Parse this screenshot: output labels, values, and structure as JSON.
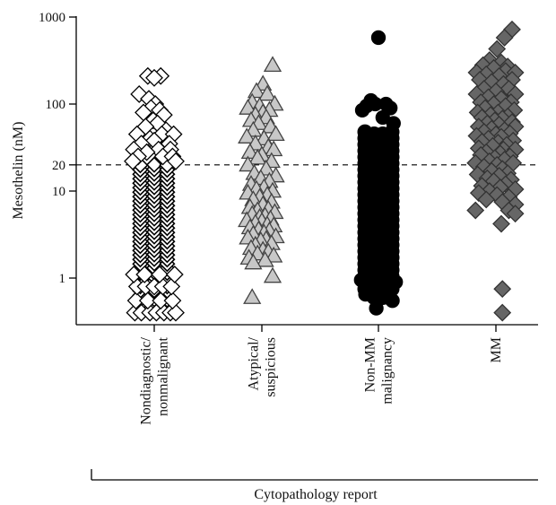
{
  "chart_data": {
    "type": "scatter",
    "title": "",
    "xlabel": "Cytopathology report",
    "ylabel": "Mesothelin (nM)",
    "y_scale": "log",
    "ylim": [
      0.3,
      1000
    ],
    "yticks": [
      {
        "value": 1,
        "label": "1"
      },
      {
        "value": 10,
        "label": "10"
      },
      {
        "value": 20,
        "label": "20"
      },
      {
        "value": 100,
        "label": "100"
      },
      {
        "value": 1000,
        "label": "1000"
      }
    ],
    "threshold": 20,
    "grid": false,
    "legend": "none",
    "categories": [
      {
        "label_lines": [
          "Nondiagnostic/",
          "nonmalignant"
        ]
      },
      {
        "label_lines": [
          "Atypical/",
          "suspicious"
        ]
      },
      {
        "label_lines": [
          "Non-MM",
          "malignancy"
        ]
      },
      {
        "label_lines": [
          "MM"
        ]
      }
    ],
    "series": [
      {
        "category": 0,
        "marker": "diamond",
        "fill": "#ffffff",
        "stroke": "#000000",
        "points": [
          {
            "x": -0.6,
            "y": 210
          },
          {
            "x": 0.6,
            "y": 210
          },
          {
            "x": 0.0,
            "y": 200
          },
          {
            "x": -1.4,
            "y": 130
          },
          {
            "x": -0.5,
            "y": 115
          },
          {
            "x": 0.1,
            "y": 100
          },
          {
            "x": -0.3,
            "y": 90
          },
          {
            "x": 0.5,
            "y": 85
          },
          {
            "x": -1.0,
            "y": 80
          },
          {
            "x": 0.9,
            "y": 75
          },
          {
            "x": -0.1,
            "y": 65
          },
          {
            "x": 0.3,
            "y": 60
          },
          {
            "x": -0.8,
            "y": 55
          },
          {
            "x": 1.1,
            "y": 50
          },
          {
            "x": -1.6,
            "y": 45
          },
          {
            "x": 0.7,
            "y": 45
          },
          {
            "x": 1.8,
            "y": 45
          },
          {
            "x": -0.4,
            "y": 40
          },
          {
            "x": 0.0,
            "y": 38
          },
          {
            "x": -1.2,
            "y": 35
          },
          {
            "x": 1.4,
            "y": 35
          },
          {
            "x": -1.9,
            "y": 30
          },
          {
            "x": 0.4,
            "y": 30
          },
          {
            "x": 1.5,
            "y": 30
          },
          {
            "x": -0.7,
            "y": 28
          },
          {
            "x": -1.5,
            "y": 25
          },
          {
            "x": 0.8,
            "y": 25
          },
          {
            "x": 1.7,
            "y": 25
          },
          {
            "x": -2.0,
            "y": 22
          },
          {
            "x": 2.0,
            "y": 22
          },
          {
            "x": -1.8,
            "y": 0.4
          },
          {
            "x": -1.2,
            "y": 0.4
          },
          {
            "x": -0.4,
            "y": 0.4
          },
          {
            "x": 0.2,
            "y": 0.4
          },
          {
            "x": 0.9,
            "y": 0.4
          },
          {
            "x": 1.5,
            "y": 0.4
          },
          {
            "x": 2.0,
            "y": 0.4
          },
          {
            "x": -1.7,
            "y": 0.55
          },
          {
            "x": -0.6,
            "y": 0.55
          },
          {
            "x": 0.6,
            "y": 0.55
          },
          {
            "x": 1.7,
            "y": 0.55
          },
          {
            "x": -1.6,
            "y": 0.8
          },
          {
            "x": -0.8,
            "y": 0.8
          },
          {
            "x": 0.0,
            "y": 0.8
          },
          {
            "x": 0.8,
            "y": 0.8
          },
          {
            "x": 1.6,
            "y": 0.8
          },
          {
            "x": -1.9,
            "y": 1.1
          },
          {
            "x": -0.9,
            "y": 1.1
          },
          {
            "x": 0.5,
            "y": 1.1
          },
          {
            "x": 1.9,
            "y": 1.1
          }
        ]
      },
      {
        "category": 1,
        "marker": "triangle",
        "fill": "#c8c8c8",
        "stroke": "#444444",
        "points": [
          {
            "x": 1.0,
            "y": 280
          },
          {
            "x": 0.1,
            "y": 170
          },
          {
            "x": -0.5,
            "y": 140
          },
          {
            "x": 0.5,
            "y": 130
          },
          {
            "x": -0.9,
            "y": 105
          },
          {
            "x": 1.2,
            "y": 100
          },
          {
            "x": -0.2,
            "y": 95
          },
          {
            "x": -1.3,
            "y": 90
          },
          {
            "x": 0.7,
            "y": 85
          },
          {
            "x": 0.1,
            "y": 80
          },
          {
            "x": -0.6,
            "y": 75
          },
          {
            "x": 0.4,
            "y": 70
          },
          {
            "x": -1.0,
            "y": 65
          },
          {
            "x": -0.3,
            "y": 60
          },
          {
            "x": 0.8,
            "y": 55
          },
          {
            "x": -0.8,
            "y": 50
          },
          {
            "x": 1.3,
            "y": 45
          },
          {
            "x": -1.4,
            "y": 42
          },
          {
            "x": 0.2,
            "y": 40
          },
          {
            "x": -0.6,
            "y": 35
          },
          {
            "x": 0.6,
            "y": 32
          },
          {
            "x": 1.1,
            "y": 30
          },
          {
            "x": -1.1,
            "y": 28
          },
          {
            "x": 0.0,
            "y": 26
          },
          {
            "x": -0.4,
            "y": 24
          },
          {
            "x": 0.9,
            "y": 22
          },
          {
            "x": -1.3,
            "y": 20
          },
          {
            "x": 0.4,
            "y": 18
          },
          {
            "x": -0.7,
            "y": 16
          },
          {
            "x": 1.3,
            "y": 15
          },
          {
            "x": -0.1,
            "y": 14
          },
          {
            "x": 0.7,
            "y": 13
          },
          {
            "x": -1.0,
            "y": 12
          },
          {
            "x": 0.2,
            "y": 11
          },
          {
            "x": -0.5,
            "y": 10.5
          },
          {
            "x": 1.0,
            "y": 10
          },
          {
            "x": -1.3,
            "y": 9.5
          },
          {
            "x": 0.5,
            "y": 9
          },
          {
            "x": -0.2,
            "y": 8.5
          },
          {
            "x": -0.8,
            "y": 8
          },
          {
            "x": 0.9,
            "y": 7.5
          },
          {
            "x": 0.1,
            "y": 7
          },
          {
            "x": -1.1,
            "y": 6.5
          },
          {
            "x": 0.6,
            "y": 6.2
          },
          {
            "x": -0.4,
            "y": 6
          },
          {
            "x": 1.2,
            "y": 5.7
          },
          {
            "x": -0.9,
            "y": 5.4
          },
          {
            "x": 0.3,
            "y": 5.2
          },
          {
            "x": -0.2,
            "y": 5
          },
          {
            "x": 0.8,
            "y": 4.8
          },
          {
            "x": -1.4,
            "y": 4.6
          },
          {
            "x": 0.0,
            "y": 4.5
          },
          {
            "x": -0.6,
            "y": 4.3
          },
          {
            "x": 0.5,
            "y": 4.1
          },
          {
            "x": 1.1,
            "y": 4
          },
          {
            "x": -1.1,
            "y": 3.8
          },
          {
            "x": -0.3,
            "y": 3.6
          },
          {
            "x": 0.7,
            "y": 3.5
          },
          {
            "x": 0.2,
            "y": 3.3
          },
          {
            "x": -0.8,
            "y": 3.2
          },
          {
            "x": 1.3,
            "y": 3
          },
          {
            "x": -1.3,
            "y": 2.9
          },
          {
            "x": 0.4,
            "y": 2.8
          },
          {
            "x": -0.1,
            "y": 2.7
          },
          {
            "x": 0.9,
            "y": 2.5
          },
          {
            "x": -0.6,
            "y": 2.4
          },
          {
            "x": -1.0,
            "y": 2.2
          },
          {
            "x": 0.1,
            "y": 2.1
          },
          {
            "x": 0.6,
            "y": 2
          },
          {
            "x": -0.4,
            "y": 1.9
          },
          {
            "x": 1.1,
            "y": 1.8
          },
          {
            "x": -1.2,
            "y": 1.7
          },
          {
            "x": 0.3,
            "y": 1.6
          },
          {
            "x": -0.8,
            "y": 1.5
          },
          {
            "x": 1.0,
            "y": 1.05
          },
          {
            "x": -0.9,
            "y": 0.6
          }
        ]
      },
      {
        "category": 2,
        "marker": "circle",
        "fill": "#000000",
        "stroke": "#000000",
        "points": [
          {
            "x": 0.0,
            "y": 580
          },
          {
            "x": -0.7,
            "y": 110
          },
          {
            "x": -0.3,
            "y": 100
          },
          {
            "x": 0.7,
            "y": 100
          },
          {
            "x": -1.1,
            "y": 95
          },
          {
            "x": 1.1,
            "y": 90
          },
          {
            "x": -1.5,
            "y": 85
          },
          {
            "x": 0.4,
            "y": 70
          },
          {
            "x": 1.4,
            "y": 60
          },
          {
            "x": -0.2,
            "y": 0.45
          },
          {
            "x": -1.2,
            "y": 0.65
          },
          {
            "x": -0.6,
            "y": 0.75
          },
          {
            "x": 0.3,
            "y": 0.7
          },
          {
            "x": 0.8,
            "y": 0.6
          },
          {
            "x": 1.3,
            "y": 0.55
          },
          {
            "x": -1.6,
            "y": 0.95
          },
          {
            "x": 0.6,
            "y": 0.95
          },
          {
            "x": 1.6,
            "y": 0.9
          }
        ]
      },
      {
        "category": 3,
        "marker": "diamond",
        "fill": "#666666",
        "stroke": "#333333",
        "points": [
          {
            "x": 1.5,
            "y": 720
          },
          {
            "x": 0.8,
            "y": 580
          },
          {
            "x": 0.1,
            "y": 430
          },
          {
            "x": -0.6,
            "y": 320
          },
          {
            "x": 0.5,
            "y": 300
          },
          {
            "x": -1.2,
            "y": 280
          },
          {
            "x": 1.1,
            "y": 270
          },
          {
            "x": -0.2,
            "y": 260
          },
          {
            "x": 0.9,
            "y": 240
          },
          {
            "x": -1.8,
            "y": 230
          },
          {
            "x": 1.8,
            "y": 230
          },
          {
            "x": -0.9,
            "y": 220
          },
          {
            "x": 0.3,
            "y": 210
          },
          {
            "x": -1.5,
            "y": 190
          },
          {
            "x": 1.5,
            "y": 190
          },
          {
            "x": -0.4,
            "y": 180
          },
          {
            "x": 0.7,
            "y": 170
          },
          {
            "x": -1.1,
            "y": 150
          },
          {
            "x": 1.2,
            "y": 150
          },
          {
            "x": 0.0,
            "y": 140
          },
          {
            "x": -1.8,
            "y": 130
          },
          {
            "x": 1.8,
            "y": 130
          },
          {
            "x": -0.7,
            "y": 120
          },
          {
            "x": 0.5,
            "y": 115
          },
          {
            "x": -1.4,
            "y": 105
          },
          {
            "x": 1.4,
            "y": 105
          },
          {
            "x": -0.2,
            "y": 100
          },
          {
            "x": 0.9,
            "y": 95
          },
          {
            "x": -1.0,
            "y": 90
          },
          {
            "x": 1.7,
            "y": 85
          },
          {
            "x": -1.7,
            "y": 80
          },
          {
            "x": 0.2,
            "y": 80
          },
          {
            "x": -0.5,
            "y": 75
          },
          {
            "x": 1.1,
            "y": 72
          },
          {
            "x": -1.3,
            "y": 70
          },
          {
            "x": 0.6,
            "y": 68
          },
          {
            "x": -0.1,
            "y": 65
          },
          {
            "x": 1.5,
            "y": 62
          },
          {
            "x": -0.8,
            "y": 60
          },
          {
            "x": 0.3,
            "y": 58
          },
          {
            "x": -1.6,
            "y": 55
          },
          {
            "x": 1.8,
            "y": 55
          },
          {
            "x": -0.4,
            "y": 52
          },
          {
            "x": 0.8,
            "y": 50
          },
          {
            "x": -1.1,
            "y": 48
          },
          {
            "x": 1.3,
            "y": 46
          },
          {
            "x": 0.0,
            "y": 45
          },
          {
            "x": -1.8,
            "y": 43
          },
          {
            "x": 0.5,
            "y": 42
          },
          {
            "x": -0.7,
            "y": 40
          },
          {
            "x": 1.6,
            "y": 38
          },
          {
            "x": -1.3,
            "y": 37
          },
          {
            "x": 0.2,
            "y": 36
          },
          {
            "x": 1.0,
            "y": 34
          },
          {
            "x": -0.3,
            "y": 33
          },
          {
            "x": -1.6,
            "y": 31
          },
          {
            "x": 0.7,
            "y": 30
          },
          {
            "x": 1.8,
            "y": 30
          },
          {
            "x": -0.9,
            "y": 28
          },
          {
            "x": 0.4,
            "y": 27
          },
          {
            "x": -1.4,
            "y": 26
          },
          {
            "x": 1.3,
            "y": 25
          },
          {
            "x": -0.1,
            "y": 24
          },
          {
            "x": 0.8,
            "y": 23
          },
          {
            "x": -0.6,
            "y": 22
          },
          {
            "x": -1.9,
            "y": 21
          },
          {
            "x": 1.6,
            "y": 21
          },
          {
            "x": 0.1,
            "y": 20
          },
          {
            "x": -1.1,
            "y": 19
          },
          {
            "x": 0.6,
            "y": 18
          },
          {
            "x": -0.4,
            "y": 17
          },
          {
            "x": 1.1,
            "y": 16
          },
          {
            "x": -1.7,
            "y": 15.5
          },
          {
            "x": 0.3,
            "y": 15
          },
          {
            "x": -0.8,
            "y": 14
          },
          {
            "x": 1.4,
            "y": 13.5
          },
          {
            "x": -0.2,
            "y": 13
          },
          {
            "x": 0.9,
            "y": 12
          },
          {
            "x": -1.3,
            "y": 11.5
          },
          {
            "x": 0.4,
            "y": 11
          },
          {
            "x": 1.8,
            "y": 10.5
          },
          {
            "x": -0.6,
            "y": 10
          },
          {
            "x": -1.6,
            "y": 9.5
          },
          {
            "x": 0.1,
            "y": 9
          },
          {
            "x": 1.2,
            "y": 8.5
          },
          {
            "x": -0.9,
            "y": 8
          },
          {
            "x": 0.6,
            "y": 7.5
          },
          {
            "x": 1.8,
            "y": 7
          },
          {
            "x": -1.9,
            "y": 6
          },
          {
            "x": 1.2,
            "y": 6
          },
          {
            "x": 1.8,
            "y": 5.5
          },
          {
            "x": 0.5,
            "y": 4.2
          },
          {
            "x": 0.6,
            "y": 0.75
          },
          {
            "x": 0.6,
            "y": 0.4
          }
        ]
      }
    ],
    "dense_bands": [
      {
        "category": 0,
        "shape": "diamond",
        "fill": "#000000",
        "stroke": "#000000",
        "columns": [
          {
            "x": -1.3,
            "ymin": 0.5,
            "ymax": 21
          },
          {
            "x": 0.0,
            "ymin": 0.45,
            "ymax": 22
          },
          {
            "x": 1.2,
            "ymin": 0.5,
            "ymax": 21
          }
        ]
      },
      {
        "category": 2,
        "shape": "circle",
        "fill": "#000000",
        "stroke": "#000000",
        "columns": [
          {
            "x": -1.25,
            "ymin": 0.75,
            "ymax": 50
          },
          {
            "x": -0.4,
            "ymin": 0.6,
            "ymax": 50
          },
          {
            "x": 0.4,
            "ymin": 0.6,
            "ymax": 50
          },
          {
            "x": 1.25,
            "ymin": 0.75,
            "ymax": 50
          }
        ]
      }
    ]
  }
}
